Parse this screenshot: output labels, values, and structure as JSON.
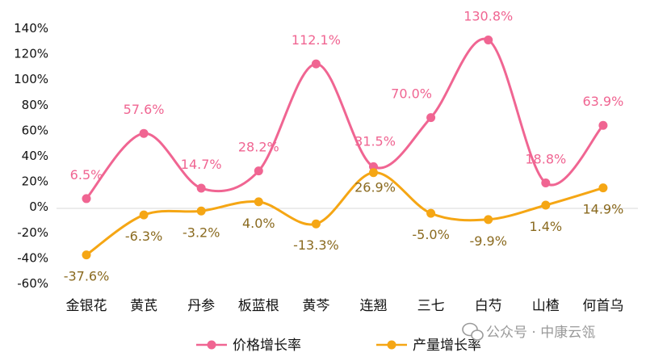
{
  "chart_data": {
    "type": "line",
    "categories": [
      "金银花",
      "黄芪",
      "丹参",
      "板蓝根",
      "黄芩",
      "连翘",
      "三七",
      "白芍",
      "山楂",
      "何首乌"
    ],
    "series": [
      {
        "name": "价格增长率",
        "color": "#f06592",
        "values": [
          6.5,
          57.6,
          14.7,
          28.2,
          112.1,
          31.5,
          70.0,
          130.8,
          18.8,
          63.9
        ],
        "labels": [
          "6.5%",
          "57.6%",
          "14.7%",
          "28.2%",
          "112.1%",
          "31.5%",
          "70.0%",
          "130.8%",
          "18.8%",
          "63.9%"
        ]
      },
      {
        "name": "产量增长率",
        "color": "#f5a614",
        "label_color": "#8a6a1f",
        "values": [
          -37.6,
          -6.3,
          -3.2,
          4.0,
          -13.3,
          26.9,
          -5.0,
          -9.9,
          1.4,
          14.9
        ],
        "labels": [
          "-37.6%",
          "-6.3%",
          "-3.2%",
          "4.0%",
          "-13.3%",
          "26.9%",
          "-5.0%",
          "-9.9%",
          "1.4%",
          "14.9%"
        ]
      }
    ],
    "ylim": [
      -60,
      140
    ],
    "yticks": [
      "140%",
      "120%",
      "100%",
      "80%",
      "60%",
      "40%",
      "20%",
      "0%",
      "-20%",
      "-40%",
      "-60%"
    ],
    "grid": false,
    "legend_position": "bottom"
  },
  "watermark": {
    "icon": "wechat-icon",
    "text": "公众号 · 中康云瓴"
  }
}
